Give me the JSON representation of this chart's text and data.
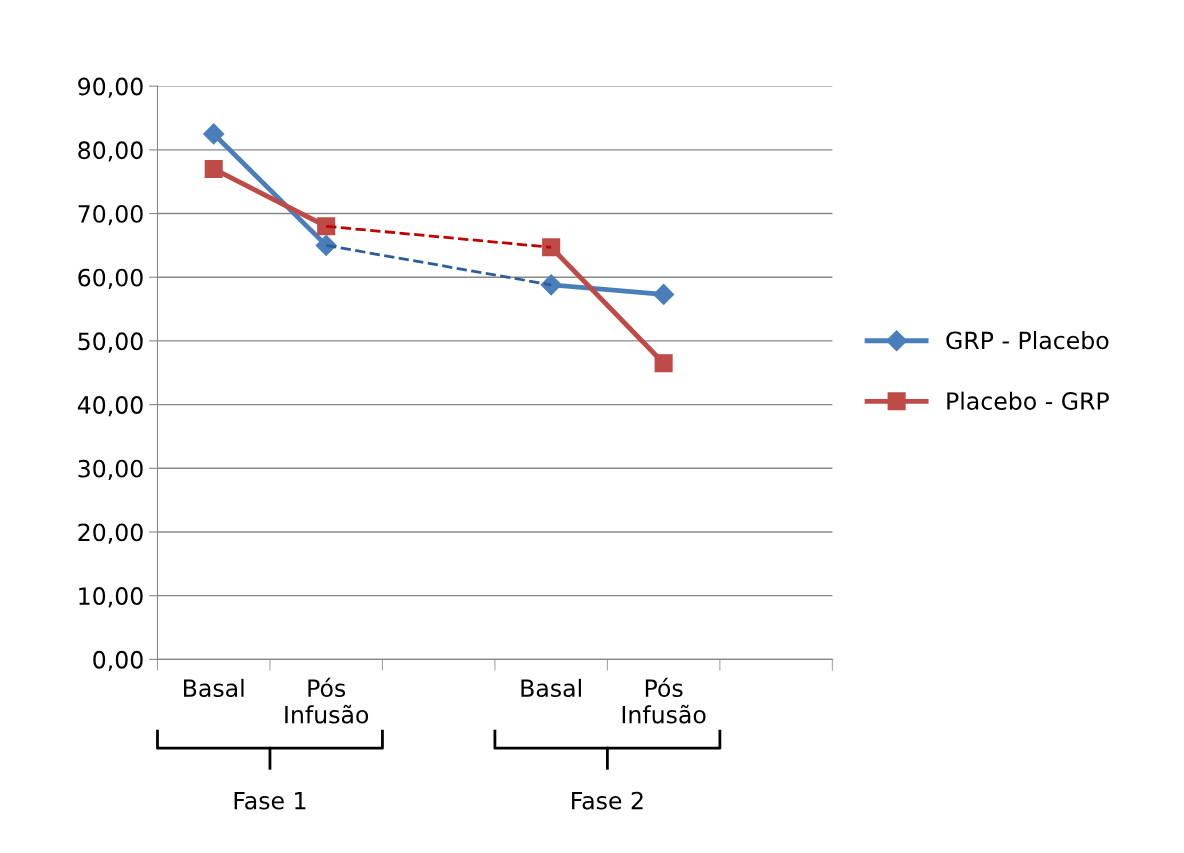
{
  "chart_data": {
    "type": "line",
    "categories": [
      "Basal",
      "Pós\nInfusão",
      null,
      "Basal",
      "Pós\nInfusão",
      null
    ],
    "series": [
      {
        "name": "GRP - Placebo",
        "color": "#4a7ebb",
        "marker": "diamond",
        "line_style": "solid",
        "values": [
          82.5,
          65.0,
          null,
          58.8,
          57.3,
          null
        ]
      },
      {
        "name": "Placebo - GRP",
        "color": "#be4b48",
        "marker": "square",
        "line_style": "solid",
        "values": [
          77.0,
          68.0,
          null,
          64.7,
          46.5,
          null
        ]
      },
      {
        "color": "#2e5c99",
        "marker": "none",
        "line_style": "dashed",
        "values": [
          null,
          65.0,
          null,
          58.8,
          null,
          null
        ]
      },
      {
        "color": "#c00000",
        "marker": "none",
        "line_style": "dashed",
        "values": [
          null,
          68.0,
          null,
          64.7,
          null,
          null
        ]
      }
    ],
    "ylim": [
      0,
      90
    ],
    "yticks": [
      {
        "value": 0,
        "label": "0,00"
      },
      {
        "value": 10,
        "label": "10,00"
      },
      {
        "value": 20,
        "label": "20,00"
      },
      {
        "value": 30,
        "label": "30,00"
      },
      {
        "value": 40,
        "label": "40,00"
      },
      {
        "value": 50,
        "label": "50,00"
      },
      {
        "value": 60,
        "label": "60,00"
      },
      {
        "value": 70,
        "label": "70,00"
      },
      {
        "value": 80,
        "label": "80,00"
      },
      {
        "value": 90,
        "label": "90,00"
      }
    ],
    "grid": "y",
    "legend": "right",
    "annotations": [
      "Fase 1",
      "Fase 2"
    ]
  }
}
